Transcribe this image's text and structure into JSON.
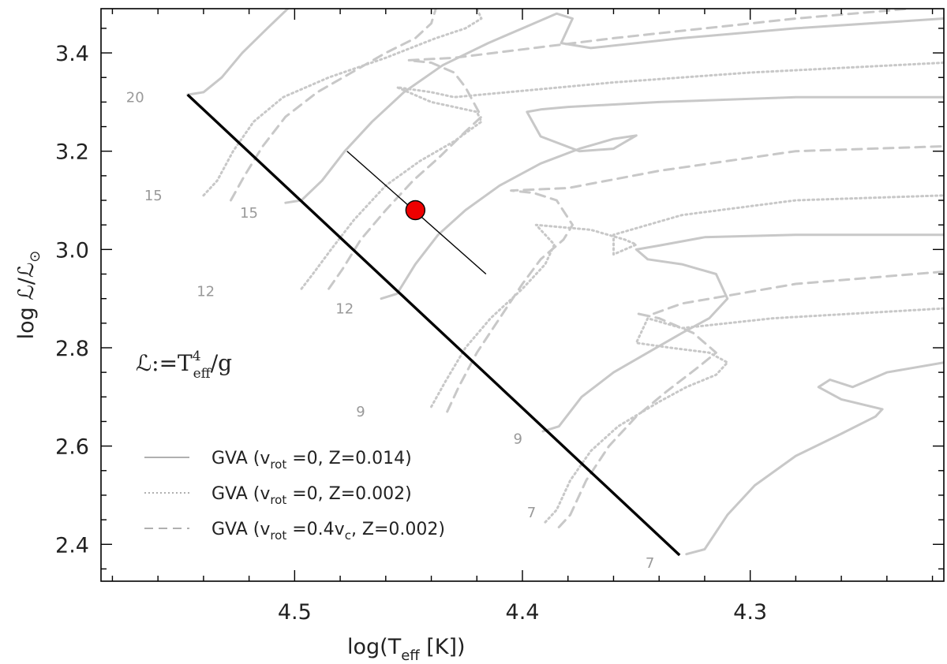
{
  "chart_data": {
    "type": "line",
    "xlabel": {
      "main": "log(T",
      "sub": "eff",
      "tail": " [K])"
    },
    "ylabel": {
      "main": "log ℒ/ℒ",
      "sun": "⊙"
    },
    "xlim": [
      4.585,
      4.215
    ],
    "ylim": [
      2.325,
      3.49
    ],
    "x_ticks": [
      4.5,
      4.4,
      4.3
    ],
    "x_tick_labels": [
      "4.5",
      "4.4",
      "4.3"
    ],
    "y_ticks": [
      2.4,
      2.6,
      2.8,
      3.0,
      3.2,
      3.4
    ],
    "y_tick_labels": [
      "2.4",
      "2.6",
      "2.8",
      "3.0",
      "3.2",
      "3.4"
    ],
    "annotation": {
      "prefix": "ℒ:=T",
      "sup": "4",
      "sub": "eff",
      "suffix": "/g"
    },
    "legend": [
      {
        "style": "solid",
        "pre": "GVA (v",
        "sub": "rot",
        "post": " =0, Z=0.014)"
      },
      {
        "style": "dotted",
        "pre": "GVA (v",
        "sub": "rot",
        "post": " =0, Z=0.002)"
      },
      {
        "style": "dashed",
        "pre": "GVA (v",
        "sub": "rot",
        "mid": " =0.4v",
        "sub2": "c",
        "post": ", Z=0.002)"
      }
    ],
    "zams": [
      [
        4.547,
        3.315
      ],
      [
        4.331,
        2.378
      ]
    ],
    "star": {
      "logT": 4.447,
      "logL": 3.08,
      "err_from": [
        4.477,
        3.2
      ],
      "err_to": [
        4.416,
        2.95
      ]
    },
    "tracks": [
      {
        "mass": "20",
        "style": "solid",
        "points": [
          [
            4.547,
            3.315
          ],
          [
            4.54,
            3.32
          ],
          [
            4.532,
            3.35
          ],
          [
            4.523,
            3.4
          ],
          [
            4.512,
            3.45
          ],
          [
            4.503,
            3.49
          ]
        ]
      },
      {
        "mass": "15",
        "style": "solid",
        "points": [
          [
            4.504,
            3.095
          ],
          [
            4.497,
            3.1
          ],
          [
            4.488,
            3.14
          ],
          [
            4.478,
            3.2
          ],
          [
            4.466,
            3.26
          ],
          [
            4.452,
            3.32
          ],
          [
            4.435,
            3.375
          ],
          [
            4.415,
            3.42
          ],
          [
            4.395,
            3.46
          ],
          [
            4.385,
            3.48
          ],
          [
            4.378,
            3.47
          ],
          [
            4.383,
            3.42
          ],
          [
            4.37,
            3.41
          ],
          [
            4.33,
            3.43
          ],
          [
            4.28,
            3.45
          ],
          [
            4.215,
            3.47
          ]
        ]
      },
      {
        "mass": "12",
        "style": "solid",
        "points": [
          [
            4.462,
            2.9
          ],
          [
            4.455,
            2.91
          ],
          [
            4.447,
            2.97
          ],
          [
            4.437,
            3.03
          ],
          [
            4.425,
            3.08
          ],
          [
            4.41,
            3.13
          ],
          [
            4.392,
            3.175
          ],
          [
            4.375,
            3.205
          ],
          [
            4.36,
            3.225
          ],
          [
            4.35,
            3.232
          ],
          [
            4.36,
            3.205
          ],
          [
            4.375,
            3.2
          ],
          [
            4.392,
            3.23
          ],
          [
            4.398,
            3.28
          ],
          [
            4.392,
            3.285
          ],
          [
            4.38,
            3.29
          ],
          [
            4.34,
            3.3
          ],
          [
            4.28,
            3.31
          ],
          [
            4.215,
            3.31
          ]
        ]
      },
      {
        "mass": "9",
        "style": "solid",
        "points": [
          [
            4.391,
            2.63
          ],
          [
            4.384,
            2.64
          ],
          [
            4.374,
            2.7
          ],
          [
            4.36,
            2.75
          ],
          [
            4.345,
            2.79
          ],
          [
            4.33,
            2.83
          ],
          [
            4.318,
            2.86
          ],
          [
            4.31,
            2.9
          ],
          [
            4.315,
            2.95
          ],
          [
            4.33,
            2.97
          ],
          [
            4.345,
            2.98
          ],
          [
            4.35,
            3.0
          ],
          [
            4.34,
            3.008
          ],
          [
            4.32,
            3.025
          ],
          [
            4.28,
            3.03
          ],
          [
            4.215,
            3.03
          ]
        ]
      },
      {
        "mass": "7",
        "style": "solid",
        "points": [
          [
            4.328,
            2.38
          ],
          [
            4.32,
            2.39
          ],
          [
            4.31,
            2.46
          ],
          [
            4.298,
            2.52
          ],
          [
            4.28,
            2.58
          ],
          [
            4.26,
            2.625
          ],
          [
            4.245,
            2.66
          ],
          [
            4.242,
            2.675
          ],
          [
            4.26,
            2.695
          ],
          [
            4.27,
            2.72
          ],
          [
            4.265,
            2.735
          ],
          [
            4.255,
            2.72
          ],
          [
            4.24,
            2.75
          ],
          [
            4.215,
            2.77
          ]
        ]
      },
      {
        "mass": "15",
        "style": "dotted",
        "points": [
          [
            4.54,
            3.11
          ],
          [
            4.534,
            3.14
          ],
          [
            4.527,
            3.2
          ],
          [
            4.518,
            3.26
          ],
          [
            4.505,
            3.31
          ],
          [
            4.485,
            3.35
          ],
          [
            4.46,
            3.39
          ],
          [
            4.438,
            3.43
          ],
          [
            4.425,
            3.45
          ],
          [
            4.418,
            3.47
          ],
          [
            4.42,
            3.49
          ]
        ]
      },
      {
        "mass": "12",
        "style": "dotted",
        "points": [
          [
            4.497,
            2.92
          ],
          [
            4.492,
            2.95
          ],
          [
            4.484,
            3.0
          ],
          [
            4.474,
            3.06
          ],
          [
            4.46,
            3.13
          ],
          [
            4.445,
            3.18
          ],
          [
            4.43,
            3.22
          ],
          [
            4.418,
            3.26
          ],
          [
            4.42,
            3.28
          ],
          [
            4.43,
            3.29
          ],
          [
            4.44,
            3.3
          ],
          [
            4.455,
            3.33
          ],
          [
            4.44,
            3.32
          ],
          [
            4.43,
            3.31
          ],
          [
            4.36,
            3.34
          ],
          [
            4.3,
            3.36
          ],
          [
            4.215,
            3.38
          ]
        ]
      },
      {
        "mass": "9",
        "style": "dotted",
        "points": [
          [
            4.44,
            2.68
          ],
          [
            4.434,
            2.73
          ],
          [
            4.425,
            2.8
          ],
          [
            4.414,
            2.86
          ],
          [
            4.4,
            2.92
          ],
          [
            4.39,
            2.97
          ],
          [
            4.386,
            3.01
          ],
          [
            4.394,
            3.05
          ],
          [
            4.37,
            3.04
          ],
          [
            4.355,
            3.02
          ],
          [
            4.35,
            3.01
          ],
          [
            4.36,
            2.99
          ],
          [
            4.36,
            3.03
          ],
          [
            4.33,
            3.07
          ],
          [
            4.28,
            3.1
          ],
          [
            4.215,
            3.11
          ]
        ]
      },
      {
        "mass": "7",
        "style": "dotted",
        "points": [
          [
            4.39,
            2.445
          ],
          [
            4.385,
            2.47
          ],
          [
            4.379,
            2.53
          ],
          [
            4.37,
            2.59
          ],
          [
            4.358,
            2.64
          ],
          [
            4.34,
            2.69
          ],
          [
            4.328,
            2.72
          ],
          [
            4.315,
            2.745
          ],
          [
            4.31,
            2.77
          ],
          [
            4.318,
            2.79
          ],
          [
            4.335,
            2.8
          ],
          [
            4.35,
            2.81
          ],
          [
            4.345,
            2.86
          ],
          [
            4.33,
            2.84
          ],
          [
            4.29,
            2.86
          ],
          [
            4.215,
            2.88
          ]
        ]
      },
      {
        "mass": "",
        "style": "dashed",
        "points": [
          [
            4.528,
            3.1
          ],
          [
            4.522,
            3.15
          ],
          [
            4.514,
            3.21
          ],
          [
            4.504,
            3.27
          ],
          [
            4.49,
            3.32
          ],
          [
            4.475,
            3.36
          ],
          [
            4.46,
            3.4
          ],
          [
            4.447,
            3.43
          ],
          [
            4.44,
            3.46
          ],
          [
            4.438,
            3.49
          ]
        ]
      },
      {
        "mass": "",
        "style": "dashed",
        "points": [
          [
            4.485,
            2.92
          ],
          [
            4.479,
            2.96
          ],
          [
            4.471,
            3.02
          ],
          [
            4.46,
            3.08
          ],
          [
            4.448,
            3.14
          ],
          [
            4.436,
            3.19
          ],
          [
            4.425,
            3.24
          ],
          [
            4.418,
            3.27
          ],
          [
            4.425,
            3.33
          ],
          [
            4.43,
            3.36
          ],
          [
            4.44,
            3.38
          ],
          [
            4.45,
            3.385
          ],
          [
            4.43,
            3.39
          ],
          [
            4.36,
            3.43
          ],
          [
            4.28,
            3.47
          ],
          [
            4.23,
            3.49
          ]
        ]
      },
      {
        "mass": "",
        "style": "dashed",
        "points": [
          [
            4.433,
            2.67
          ],
          [
            4.428,
            2.72
          ],
          [
            4.42,
            2.79
          ],
          [
            4.41,
            2.86
          ],
          [
            4.4,
            2.93
          ],
          [
            4.392,
            2.98
          ],
          [
            4.382,
            3.02
          ],
          [
            4.378,
            3.05
          ],
          [
            4.385,
            3.1
          ],
          [
            4.395,
            3.115
          ],
          [
            4.405,
            3.12
          ],
          [
            4.38,
            3.125
          ],
          [
            4.34,
            3.16
          ],
          [
            4.28,
            3.2
          ],
          [
            4.215,
            3.21
          ]
        ]
      },
      {
        "mass": "",
        "style": "dashed",
        "points": [
          [
            4.384,
            2.435
          ],
          [
            4.379,
            2.46
          ],
          [
            4.372,
            2.53
          ],
          [
            4.362,
            2.6
          ],
          [
            4.35,
            2.66
          ],
          [
            4.337,
            2.71
          ],
          [
            4.323,
            2.76
          ],
          [
            4.315,
            2.79
          ],
          [
            4.325,
            2.83
          ],
          [
            4.34,
            2.86
          ],
          [
            4.35,
            2.87
          ],
          [
            4.345,
            2.865
          ],
          [
            4.33,
            2.89
          ],
          [
            4.28,
            2.93
          ],
          [
            4.215,
            2.955
          ]
        ]
      }
    ],
    "track_labels": [
      {
        "text": "20",
        "x": 4.574,
        "y": 3.3
      },
      {
        "text": "15",
        "x": 4.566,
        "y": 3.1
      },
      {
        "text": "15",
        "x": 4.524,
        "y": 3.065
      },
      {
        "text": "12",
        "x": 4.543,
        "y": 2.905
      },
      {
        "text": "12",
        "x": 4.482,
        "y": 2.87
      },
      {
        "text": "9",
        "x": 4.473,
        "y": 2.66
      },
      {
        "text": "9",
        "x": 4.404,
        "y": 2.605
      },
      {
        "text": "7",
        "x": 4.398,
        "y": 2.455
      },
      {
        "text": "7",
        "x": 4.346,
        "y": 2.352
      }
    ]
  }
}
